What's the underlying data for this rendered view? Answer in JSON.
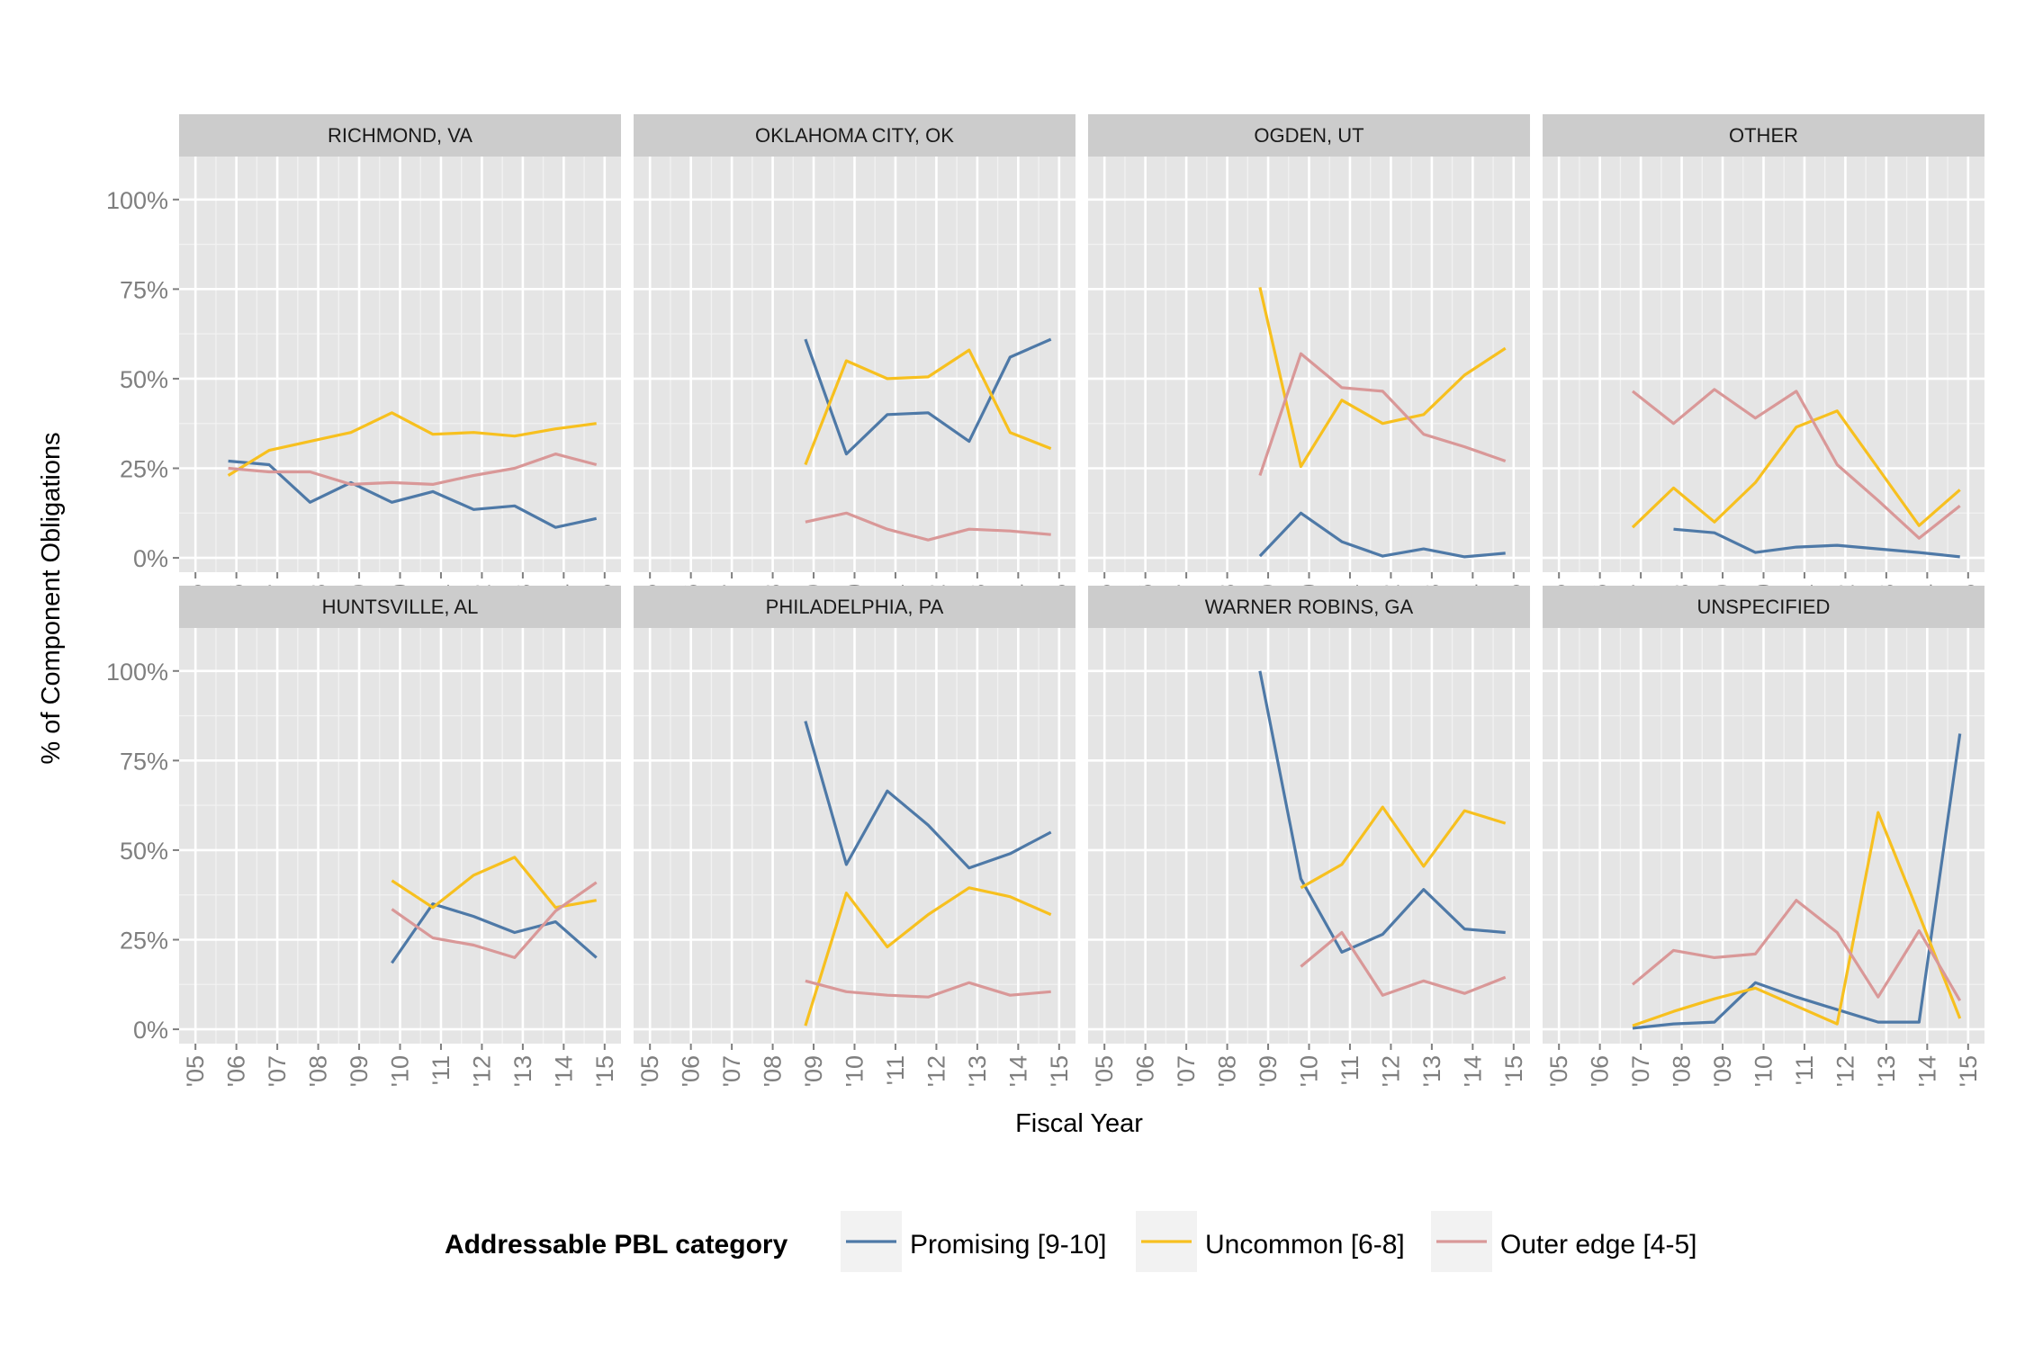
{
  "chart_data": {
    "type": "line",
    "facet_layout": "4 columns x 2 rows",
    "xlabel": "Fiscal Year",
    "ylabel": "% of Component Obligations",
    "ylim": [
      -0.04,
      1.12
    ],
    "xlim": [
      2004.6,
      2015.4
    ],
    "x_ticks": [
      2005,
      2006,
      2007,
      2008,
      2009,
      2010,
      2011,
      2012,
      2013,
      2014,
      2015
    ],
    "x_tick_labels": [
      "'05",
      "'06",
      "'07",
      "'08",
      "'09",
      "'10",
      "'11",
      "'12",
      "'13",
      "'14",
      "'15"
    ],
    "y_ticks": [
      0,
      0.25,
      0.5,
      0.75,
      1.0
    ],
    "y_tick_labels": [
      "0%",
      "25%",
      "50%",
      "75%",
      "100%"
    ],
    "grid": true,
    "legend": {
      "title": "Addressable PBL category",
      "placement": "bottom",
      "entries": [
        {
          "label": "Promising [9-10]",
          "color": "#4e79a7"
        },
        {
          "label": "Uncommon [6-8]",
          "color": "#f7c01f"
        },
        {
          "label": "Outer edge [4-5]",
          "color": "#d99898"
        }
      ]
    },
    "panels": [
      {
        "title": "RICHMOND, VA",
        "series": [
          {
            "name": "Promising [9-10]",
            "x": [
              2005.8,
              2006.8,
              2007.8,
              2008.8,
              2009.8,
              2010.8,
              2011.8,
              2012.8,
              2013.8,
              2014.8
            ],
            "values": [
              0.27,
              0.26,
              0.155,
              0.21,
              0.155,
              0.185,
              0.135,
              0.145,
              0.085,
              0.11
            ]
          },
          {
            "name": "Uncommon [6-8]",
            "x": [
              2005.8,
              2006.8,
              2007.8,
              2008.8,
              2009.8,
              2010.8,
              2011.8,
              2012.8,
              2013.8,
              2014.8
            ],
            "values": [
              0.23,
              0.3,
              0.325,
              0.35,
              0.405,
              0.345,
              0.35,
              0.34,
              0.36,
              0.375
            ]
          },
          {
            "name": "Outer edge [4-5]",
            "x": [
              2005.8,
              2006.8,
              2007.8,
              2008.8,
              2009.8,
              2010.8,
              2011.8,
              2012.8,
              2013.8,
              2014.8
            ],
            "values": [
              0.25,
              0.24,
              0.24,
              0.205,
              0.21,
              0.205,
              0.23,
              0.25,
              0.29,
              0.26
            ]
          }
        ]
      },
      {
        "title": "OKLAHOMA CITY, OK",
        "series": [
          {
            "name": "Promising [9-10]",
            "x": [
              2008.8,
              2009.8,
              2010.8,
              2011.8,
              2012.8,
              2013.8,
              2014.8
            ],
            "values": [
              0.61,
              0.29,
              0.4,
              0.405,
              0.325,
              0.56,
              0.61
            ]
          },
          {
            "name": "Uncommon [6-8]",
            "x": [
              2008.8,
              2009.8,
              2010.8,
              2011.8,
              2012.8,
              2013.8,
              2014.8
            ],
            "values": [
              0.26,
              0.55,
              0.5,
              0.505,
              0.58,
              0.35,
              0.305
            ]
          },
          {
            "name": "Outer edge [4-5]",
            "x": [
              2008.8,
              2009.8,
              2010.8,
              2011.8,
              2012.8,
              2013.8,
              2014.8
            ],
            "values": [
              0.1,
              0.125,
              0.08,
              0.05,
              0.08,
              0.075,
              0.065
            ]
          }
        ]
      },
      {
        "title": "OGDEN, UT",
        "series": [
          {
            "name": "Promising [9-10]",
            "x": [
              2008.8,
              2009.8,
              2010.8,
              2011.8,
              2012.8,
              2013.8,
              2014.8
            ],
            "values": [
              0.005,
              0.125,
              0.045,
              0.005,
              0.025,
              0.003,
              0.013
            ]
          },
          {
            "name": "Uncommon [6-8]",
            "x": [
              2008.8,
              2009.8,
              2010.8,
              2011.8,
              2012.8,
              2013.8,
              2014.8
            ],
            "values": [
              0.755,
              0.255,
              0.44,
              0.375,
              0.4,
              0.51,
              0.585
            ]
          },
          {
            "name": "Outer edge [4-5]",
            "x": [
              2008.8,
              2009.8,
              2010.8,
              2011.8,
              2012.8,
              2013.8,
              2014.8
            ],
            "values": [
              0.23,
              0.57,
              0.475,
              0.465,
              0.345,
              0.31,
              0.27
            ]
          }
        ]
      },
      {
        "title": "OTHER",
        "series": [
          {
            "name": "Promising [9-10]",
            "x": [
              2007.8,
              2008.8,
              2009.8,
              2010.8,
              2011.8,
              2012.8,
              2013.8,
              2014.8
            ],
            "values": [
              0.08,
              0.07,
              0.015,
              0.03,
              0.035,
              0.025,
              0.015,
              0.003
            ]
          },
          {
            "name": "Uncommon [6-8]",
            "x": [
              2006.8,
              2007.8,
              2008.8,
              2009.8,
              2010.8,
              2011.8,
              2012.8,
              2013.8,
              2014.8
            ],
            "values": [
              0.085,
              0.195,
              0.1,
              0.21,
              0.365,
              0.41,
              0.25,
              0.09,
              0.19
            ]
          },
          {
            "name": "Outer edge [4-5]",
            "x": [
              2006.8,
              2007.8,
              2008.8,
              2009.8,
              2010.8,
              2011.8,
              2012.8,
              2013.8,
              2014.8
            ],
            "values": [
              0.465,
              0.375,
              0.47,
              0.39,
              0.465,
              0.26,
              0.16,
              0.055,
              0.145
            ]
          }
        ]
      },
      {
        "title": "HUNTSVILLE, AL",
        "series": [
          {
            "name": "Promising [9-10]",
            "x": [
              2009.8,
              2010.8,
              2011.8,
              2012.8,
              2013.8,
              2014.8
            ],
            "values": [
              0.185,
              0.35,
              0.315,
              0.27,
              0.3,
              0.2
            ]
          },
          {
            "name": "Uncommon [6-8]",
            "x": [
              2009.8,
              2010.8,
              2011.8,
              2012.8,
              2013.8,
              2014.8
            ],
            "values": [
              0.415,
              0.34,
              0.43,
              0.48,
              0.34,
              0.36
            ]
          },
          {
            "name": "Outer edge [4-5]",
            "x": [
              2009.8,
              2010.8,
              2011.8,
              2012.8,
              2013.8,
              2014.8
            ],
            "values": [
              0.335,
              0.255,
              0.235,
              0.2,
              0.33,
              0.41
            ]
          }
        ]
      },
      {
        "title": "PHILADELPHIA, PA",
        "series": [
          {
            "name": "Promising [9-10]",
            "x": [
              2008.8,
              2009.8,
              2010.8,
              2011.8,
              2012.8,
              2013.8,
              2014.8
            ],
            "values": [
              0.86,
              0.46,
              0.665,
              0.57,
              0.45,
              0.49,
              0.55
            ]
          },
          {
            "name": "Uncommon [6-8]",
            "x": [
              2008.8,
              2009.8,
              2010.8,
              2011.8,
              2012.8,
              2013.8,
              2014.8
            ],
            "values": [
              0.01,
              0.38,
              0.23,
              0.32,
              0.395,
              0.37,
              0.32
            ]
          },
          {
            "name": "Outer edge [4-5]",
            "x": [
              2008.8,
              2009.8,
              2010.8,
              2011.8,
              2012.8,
              2013.8,
              2014.8
            ],
            "values": [
              0.135,
              0.105,
              0.095,
              0.09,
              0.13,
              0.095,
              0.105
            ]
          }
        ]
      },
      {
        "title": "WARNER ROBINS, GA",
        "series": [
          {
            "name": "Promising [9-10]",
            "x": [
              2008.8,
              2009.8,
              2010.8,
              2011.8,
              2012.8,
              2013.8,
              2014.8
            ],
            "values": [
              1.0,
              0.42,
              0.215,
              0.265,
              0.39,
              0.28,
              0.27
            ]
          },
          {
            "name": "Uncommon [6-8]",
            "x": [
              2009.8,
              2010.8,
              2011.8,
              2012.8,
              2013.8,
              2014.8
            ],
            "values": [
              0.395,
              0.46,
              0.62,
              0.455,
              0.61,
              0.575
            ]
          },
          {
            "name": "Outer edge [4-5]",
            "x": [
              2009.8,
              2010.8,
              2011.8,
              2012.8,
              2013.8,
              2014.8
            ],
            "values": [
              0.175,
              0.27,
              0.095,
              0.135,
              0.1,
              0.145
            ]
          }
        ]
      },
      {
        "title": "UNSPECIFIED",
        "series": [
          {
            "name": "Promising [9-10]",
            "x": [
              2006.8,
              2007.8,
              2008.8,
              2009.8,
              2010.8,
              2011.8,
              2012.8,
              2013.8,
              2014.8
            ],
            "values": [
              0.003,
              0.015,
              0.02,
              0.13,
              0.09,
              0.055,
              0.02,
              0.02,
              0.825
            ]
          },
          {
            "name": "Uncommon [6-8]",
            "x": [
              2006.8,
              2007.8,
              2008.8,
              2009.8,
              2010.8,
              2011.8,
              2012.8,
              2013.8,
              2014.8
            ],
            "values": [
              0.01,
              0.05,
              0.085,
              0.115,
              0.065,
              0.015,
              0.605,
              0.32,
              0.03
            ]
          },
          {
            "name": "Outer edge [4-5]",
            "x": [
              2006.8,
              2007.8,
              2008.8,
              2009.8,
              2010.8,
              2011.8,
              2012.8,
              2013.8,
              2014.8
            ],
            "values": [
              0.125,
              0.22,
              0.2,
              0.21,
              0.36,
              0.27,
              0.09,
              0.275,
              0.08
            ]
          }
        ]
      }
    ]
  }
}
